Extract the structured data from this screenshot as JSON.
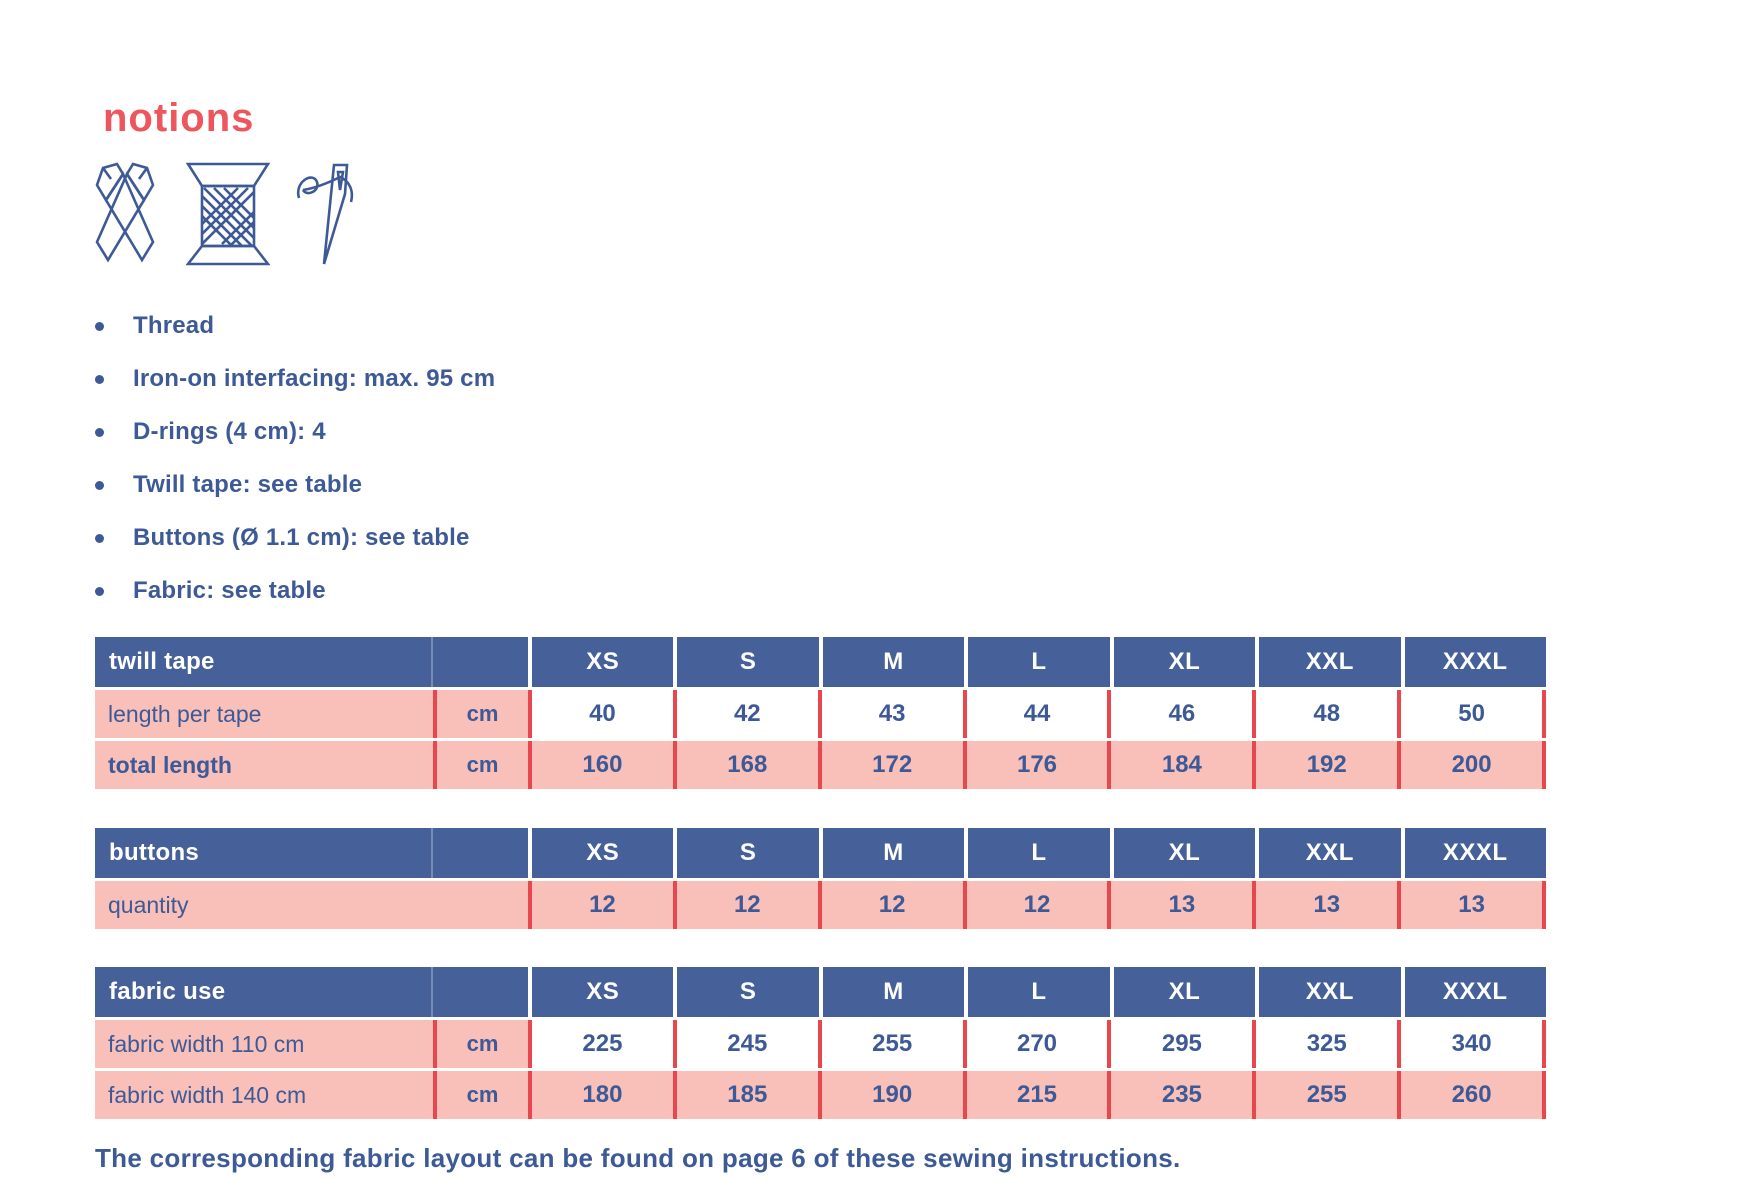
{
  "page": {
    "title": "notions",
    "footer": "The corresponding fabric layout can be found on page 6 of these sewing instructions."
  },
  "icons": [
    "scissors-icon",
    "thread-spool-icon",
    "needle-icon"
  ],
  "bullets": [
    "Thread",
    "Iron-on interfacing: max. 95 cm",
    "D-rings (4 cm): 4",
    "Twill tape: see table",
    "Buttons (Ø 1.1 cm): see table",
    "Fabric: see table"
  ],
  "sizes": [
    "XS",
    "S",
    "M",
    "L",
    "XL",
    "XXL",
    "XXXL"
  ],
  "tables": [
    {
      "name": "twill tape",
      "rows": [
        {
          "label": "length per tape",
          "unit": "cm",
          "bold_label": false,
          "shaded_values": false,
          "values": [
            "40",
            "42",
            "43",
            "44",
            "46",
            "48",
            "50"
          ]
        },
        {
          "label": "total length",
          "unit": "cm",
          "bold_label": true,
          "shaded_values": true,
          "values": [
            "160",
            "168",
            "172",
            "176",
            "184",
            "192",
            "200"
          ]
        }
      ]
    },
    {
      "name": "buttons",
      "rows": [
        {
          "label": "quantity",
          "unit": null,
          "bold_label": false,
          "shaded_values": true,
          "values": [
            "12",
            "12",
            "12",
            "12",
            "13",
            "13",
            "13"
          ]
        }
      ]
    },
    {
      "name": "fabric use",
      "rows": [
        {
          "label": "fabric width 110 cm",
          "unit": "cm",
          "bold_label": false,
          "shaded_values": false,
          "values": [
            "225",
            "245",
            "255",
            "270",
            "295",
            "325",
            "340"
          ]
        },
        {
          "label": "fabric width 140 cm",
          "unit": "cm",
          "bold_label": false,
          "shaded_values": true,
          "values": [
            "180",
            "185",
            "190",
            "215",
            "235",
            "255",
            "260"
          ]
        }
      ]
    }
  ],
  "colors": {
    "header_blue": "#46609a",
    "text_blue": "#3d5a97",
    "row_pink": "#f9c0b9",
    "title_coral": "#ee565e",
    "separator_red": "#e8474d"
  }
}
